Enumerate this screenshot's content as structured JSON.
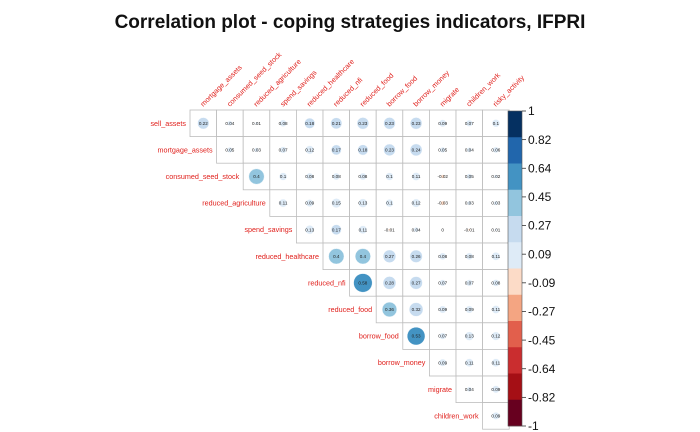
{
  "chart_data": {
    "type": "heatmap",
    "title": "Correlation plot - coping strategies indicators, IFPRI",
    "variables": [
      "sell_assets",
      "mortgage_assets",
      "consumed_seed_stock",
      "reduced_agriculture",
      "spend_savings",
      "reduced_healthcare",
      "reduced_nfi",
      "reduced_food",
      "borrow_food",
      "borrow_money",
      "migrate",
      "children_work",
      "risky_activity"
    ],
    "triangle": "upper",
    "diagonal": false,
    "method": "circle",
    "values": [
      [
        0.22,
        0.04,
        0.01,
        0.08,
        0.18,
        0.21,
        0.23,
        0.23,
        0.23,
        0.09,
        0.07,
        0.1
      ],
      [
        0.05,
        0.03,
        0.07,
        0.12,
        0.17,
        0.18,
        0.23,
        0.24,
        0.05,
        0.04,
        0.06
      ],
      [
        0.4,
        0.1,
        0.08,
        0.08,
        0.08,
        0.1,
        0.11,
        -0.02,
        0.05,
        0.02
      ],
      [
        0.11,
        0.09,
        0.15,
        0.13,
        0.1,
        0.12,
        -0.03,
        0.03,
        0.03
      ],
      [
        0.13,
        0.17,
        0.11,
        -0.01,
        0.04,
        0,
        -0.01,
        0.01
      ],
      [
        0.4,
        0.4,
        0.27,
        0.26,
        0.08,
        0.08,
        0.11
      ],
      [
        0.58,
        0.28,
        0.27,
        0.07,
        0.07,
        0.08
      ],
      [
        0.36,
        0.32,
        0.09,
        0.09,
        0.11
      ],
      [
        0.53,
        0.07,
        0.13,
        0.12
      ],
      [
        0.09,
        0.11,
        0.11
      ],
      [
        0.04,
        0.09
      ],
      [
        0.09
      ]
    ],
    "colorbar_ticks": [
      "1",
      "0.82",
      "0.64",
      "0.45",
      "0.27",
      "0.09",
      "-0.09",
      "-0.27",
      "-0.45",
      "-0.64",
      "-0.82",
      "-1"
    ],
    "colorbar_range": [
      -1,
      1
    ],
    "colorbar_colors": [
      "#67001f",
      "#a50f15",
      "#ca2d2f",
      "#e25f4c",
      "#f4a582",
      "#fcdbc7",
      "#deebf7",
      "#c6dbef",
      "#92c5de",
      "#4393c3",
      "#2166ac",
      "#053061"
    ],
    "label_color": "#e0201c"
  }
}
